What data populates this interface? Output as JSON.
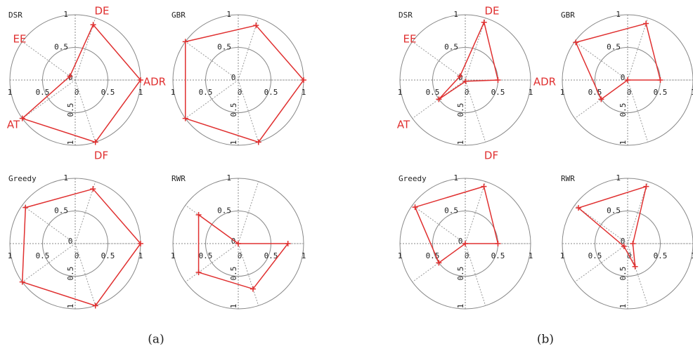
{
  "chart_data": [
    {
      "type": "radar",
      "title": "DSR",
      "categories": [
        "ADR",
        "DE",
        "EE",
        "AT",
        "DF"
      ],
      "values": [
        1,
        0.89,
        0.1,
        1,
        1
      ],
      "color": "#e03030",
      "rlim": [
        0,
        1
      ],
      "rticks": [
        0,
        0.5,
        1
      ]
    },
    {
      "type": "radar",
      "title": "GBR",
      "values": [
        1,
        0.88,
        1,
        1,
        1
      ],
      "color": "#e03030",
      "rlim": [
        0,
        1
      ],
      "rticks": [
        0,
        0.5,
        1
      ]
    },
    {
      "type": "radar",
      "title": "Greedy",
      "values": [
        1,
        0.88,
        0.94,
        1,
        1
      ],
      "color": "#e03030",
      "rlim": [
        0,
        1
      ],
      "rticks": [
        0,
        0.5,
        1
      ]
    },
    {
      "type": "radar",
      "title": "RWR",
      "values": [
        0.76,
        0,
        0.75,
        0.75,
        0.73
      ],
      "color": "#e03030",
      "rlim": [
        0,
        1
      ],
      "rticks": [
        0,
        0.5,
        1
      ]
    },
    {
      "type": "radar",
      "title": "DSR",
      "categories": [
        "ADR",
        "DE",
        "EE",
        "AT",
        "DF"
      ],
      "values": [
        0.5,
        0.93,
        0.1,
        0.5,
        0.02
      ],
      "color": "#e03030",
      "rlim": [
        0,
        1
      ],
      "rticks": [
        0,
        0.5,
        1
      ]
    },
    {
      "type": "radar",
      "title": "GBR",
      "values": [
        0.5,
        0.91,
        0.98,
        0.5,
        0
      ],
      "color": "#e03030",
      "rlim": [
        0,
        1
      ],
      "rticks": [
        0,
        0.5,
        1
      ]
    },
    {
      "type": "radar",
      "title": "Greedy",
      "values": [
        0.5,
        0.92,
        0.95,
        0.5,
        0
      ],
      "color": "#e03030",
      "rlim": [
        0,
        1
      ],
      "rticks": [
        0,
        0.5,
        1
      ]
    },
    {
      "type": "radar",
      "title": "RWR",
      "values": [
        0.08,
        0.92,
        0.93,
        0.07,
        0.37
      ],
      "color": "#e03030",
      "rlim": [
        0,
        1
      ],
      "rticks": [
        0,
        0.5,
        1
      ]
    }
  ],
  "captions": [
    "(a)",
    "(b)"
  ]
}
